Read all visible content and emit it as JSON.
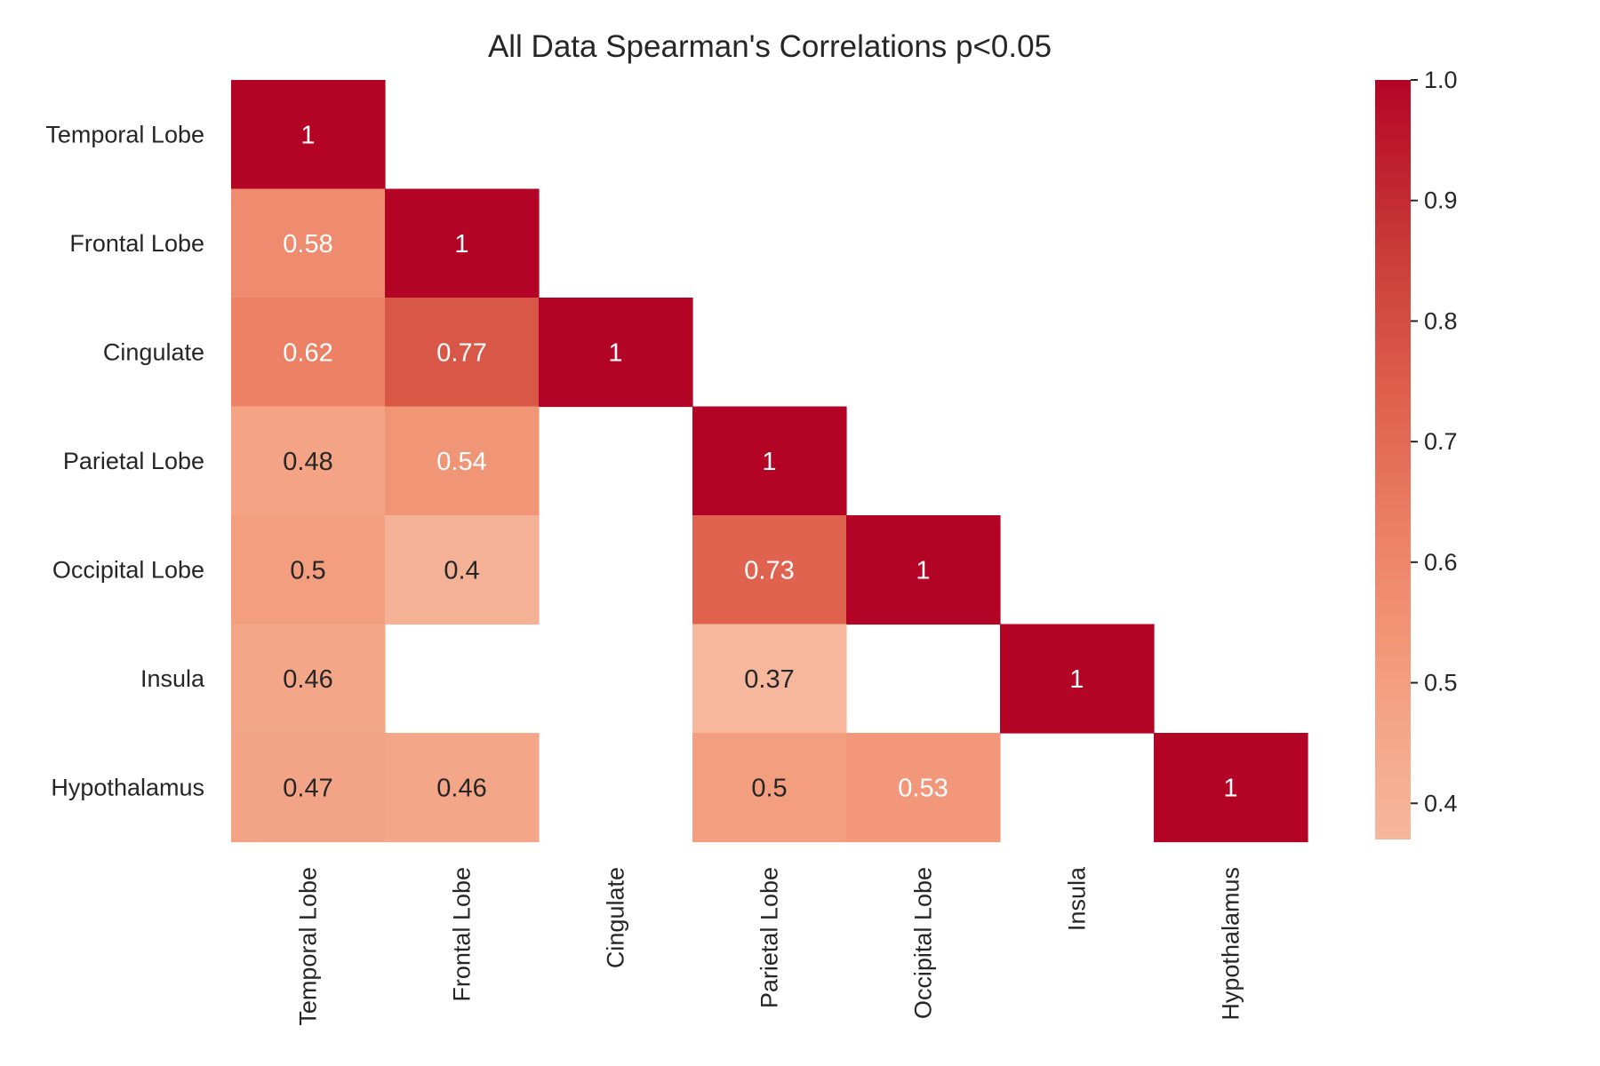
{
  "chart_data": {
    "type": "heatmap",
    "title": "All Data Spearman's Correlations p<0.05",
    "rows": [
      "Temporal Lobe",
      "Frontal Lobe",
      "Cingulate",
      "Parietal Lobe",
      "Occipital Lobe",
      "Insula",
      "Hypothalamus"
    ],
    "columns": [
      "Temporal Lobe",
      "Frontal Lobe",
      "Cingulate",
      "Parietal Lobe",
      "Occipital Lobe",
      "Insula",
      "Hypothalamus"
    ],
    "values": [
      [
        1,
        null,
        null,
        null,
        null,
        null,
        null
      ],
      [
        0.58,
        1,
        null,
        null,
        null,
        null,
        null
      ],
      [
        0.62,
        0.77,
        1,
        null,
        null,
        null,
        null
      ],
      [
        0.48,
        0.54,
        null,
        1,
        null,
        null,
        null
      ],
      [
        0.5,
        0.4,
        null,
        0.73,
        1,
        null,
        null
      ],
      [
        0.46,
        null,
        null,
        0.37,
        null,
        1,
        null
      ],
      [
        0.47,
        0.46,
        null,
        0.5,
        0.53,
        null,
        1
      ]
    ],
    "colorbar": {
      "min": 0.37,
      "max": 1.0,
      "ticks": [
        "1.0",
        "0.9",
        "0.8",
        "0.7",
        "0.6",
        "0.5",
        "0.4"
      ],
      "colormap": "coolwarm (red half)",
      "low_color": "#f6b79c",
      "high_color": "#b40426"
    },
    "grid": false
  }
}
